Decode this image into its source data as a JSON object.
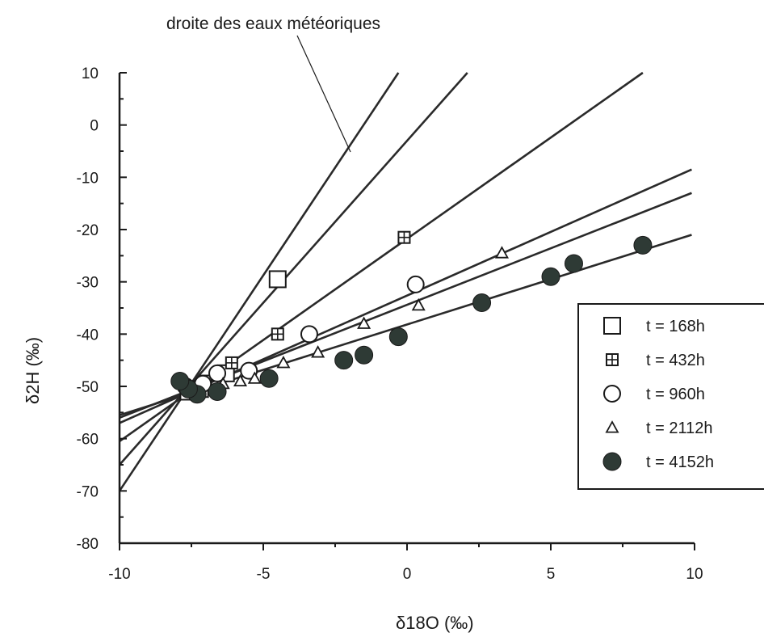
{
  "chart_data": {
    "type": "scatter",
    "title": "",
    "xlabel": "δ18O (‰)",
    "ylabel": "δ2H (‰)",
    "xlim": [
      -10,
      10
    ],
    "ylim": [
      -80,
      10
    ],
    "xticks": [
      "-10",
      "-5",
      "0",
      "5",
      "10"
    ],
    "yticks": [
      "10",
      "0",
      "-10",
      "-20",
      "-30",
      "-40",
      "-50",
      "-60",
      "-70",
      "-80"
    ],
    "grid": false,
    "legend_position": "right",
    "annotation": "droite des eaux météoriques",
    "lines": [
      {
        "name": "droite des eaux météoriques",
        "x": [
          -10,
          -0.3
        ],
        "y": [
          -70,
          10
        ]
      },
      {
        "x": [
          -10,
          2.1
        ],
        "y": [
          -65,
          10
        ]
      },
      {
        "x": [
          -10,
          8.2
        ],
        "y": [
          -60.5,
          10
        ]
      },
      {
        "x": [
          -10,
          9.9
        ],
        "y": [
          -57,
          -8.5
        ]
      },
      {
        "x": [
          -10,
          9.9
        ],
        "y": [
          -56,
          -13
        ]
      },
      {
        "x": [
          -10,
          9.9
        ],
        "y": [
          -55.5,
          -21
        ]
      }
    ],
    "series": [
      {
        "name": "t = 168h",
        "marker": "square",
        "points": [
          [
            -4.5,
            -29.5
          ],
          [
            -6.3,
            -47.5
          ],
          [
            -7.2,
            -50.5
          ],
          [
            -7.6,
            -51
          ]
        ]
      },
      {
        "name": "t = 432h",
        "marker": "square-grid",
        "points": [
          [
            -0.1,
            -21.5
          ],
          [
            -4.5,
            -40
          ],
          [
            -6.1,
            -45.5
          ],
          [
            -7.0,
            -49
          ],
          [
            -7.5,
            -50.5
          ]
        ]
      },
      {
        "name": "t = 960h",
        "marker": "circle",
        "points": [
          [
            0.3,
            -30.5
          ],
          [
            -3.4,
            -40
          ],
          [
            -5.5,
            -47
          ],
          [
            -6.6,
            -47.5
          ],
          [
            -7.1,
            -49.5
          ],
          [
            -7.7,
            -50
          ]
        ]
      },
      {
        "name": "t = 2112h",
        "marker": "triangle",
        "points": [
          [
            3.3,
            -24.5
          ],
          [
            0.4,
            -34.5
          ],
          [
            -1.5,
            -38
          ],
          [
            -3.1,
            -43.5
          ],
          [
            -4.3,
            -45.5
          ],
          [
            -5.3,
            -48.5
          ],
          [
            -5.8,
            -49
          ],
          [
            -6.4,
            -49.5
          ],
          [
            -7.3,
            -51
          ]
        ]
      },
      {
        "name": "t = 4152h",
        "marker": "filled-circle",
        "points": [
          [
            8.2,
            -23
          ],
          [
            5.8,
            -26.5
          ],
          [
            5.0,
            -29
          ],
          [
            2.6,
            -34
          ],
          [
            -0.3,
            -40.5
          ],
          [
            -1.5,
            -44
          ],
          [
            -2.2,
            -45
          ],
          [
            -4.8,
            -48.5
          ],
          [
            -6.6,
            -51
          ],
          [
            -7.3,
            -51.5
          ],
          [
            -7.6,
            -50.5
          ],
          [
            -7.9,
            -49
          ]
        ]
      }
    ]
  }
}
